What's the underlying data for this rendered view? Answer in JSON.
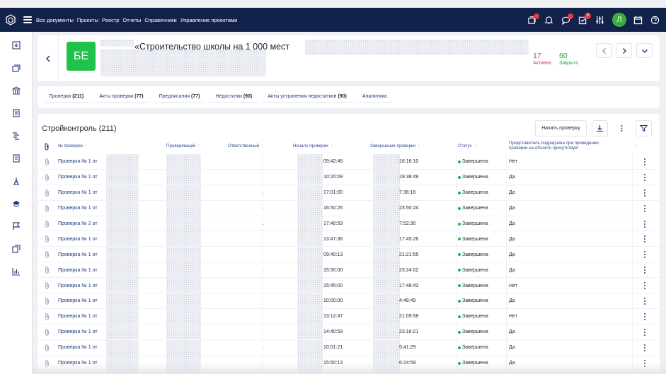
{
  "topnav": {
    "items": [
      "Все документы",
      "Проекты",
      "Реестр",
      "Отчеты",
      "Справочники",
      "Управление проектами"
    ],
    "approvals_badge": "0",
    "avatar_letter": "Л"
  },
  "project": {
    "logo_text": "БЕ",
    "title": "«Строительство школы на 1 000 мест",
    "active_count": "17",
    "active_label": "Активно",
    "closed_count": "60",
    "closed_label": "Закрыто"
  },
  "tabs": [
    {
      "label": "Проверки",
      "count": "(211)"
    },
    {
      "label": "Акты проверки",
      "count": "(77)"
    },
    {
      "label": "Предписания",
      "count": "(77)"
    },
    {
      "label": "Недостатки",
      "count": "(90)"
    },
    {
      "label": "Акты устранения недостатков",
      "count": "(90)"
    },
    {
      "label": "Аналитика",
      "count": ""
    }
  ],
  "main": {
    "title": "Стройконтроль (211)",
    "start_button": "Начать проверку"
  },
  "table": {
    "headers": {
      "number": "№ проверки",
      "inspector": "Проверяющий",
      "responsible": "Ответственный",
      "start": "Начало проверки",
      "end": "Завершение проверки",
      "status": "Статус",
      "rep": "Представитель подрядчика при проведении проверки на объекте присутствует"
    },
    "rows": [
      {
        "number": "Проверка № 1 от",
        "dot": "",
        "start": "09:42:46",
        "end": "16:16:10",
        "status": "Завершена",
        "rep": "Нет"
      },
      {
        "number": "Проверка № 1 от",
        "dot": "",
        "start": "10:20:09",
        "end": "19:38:49",
        "status": "Завершена",
        "rep": "Да"
      },
      {
        "number": "Проверка № 1 от",
        "dot": ".",
        "start": "17:01:00",
        "end": "7:36:16",
        "status": "Завершена",
        "rep": "Да"
      },
      {
        "number": "Проверка № 1 от",
        "dot": ".",
        "start": "16:50:26",
        "end": "23:50:24",
        "status": "Завершена",
        "rep": "Да"
      },
      {
        "number": "Проверка № 2 от",
        "dot": ".",
        "start": "17:40:53",
        "end": "7:52:30",
        "status": "Завершена",
        "rep": "Да"
      },
      {
        "number": "Проверка № 1 от",
        "dot": "",
        "start": "13:47:36",
        "end": "17:45:26",
        "status": "Завершена",
        "rep": "Да"
      },
      {
        "number": "Проверка № 1 от",
        "dot": "",
        "start": "09:40:13",
        "end": "21:21:55",
        "status": "Завершена",
        "rep": "Да"
      },
      {
        "number": "Проверка № 1 от",
        "dot": ".",
        "start": "15:50:00",
        "end": "23:24:02",
        "status": "Завершена",
        "rep": "Да"
      },
      {
        "number": "Проверка № 1 от",
        "dot": "",
        "start": "15:45:00",
        "end": "17:48:43",
        "status": "Завершена",
        "rep": "Нет"
      },
      {
        "number": "Проверка № 1 от",
        "dot": "",
        "start": "10:00:00",
        "end": "4:48:49",
        "status": "Завершена",
        "rep": "Да"
      },
      {
        "number": "Проверка № 1 от",
        "dot": "",
        "start": "13:12:47",
        "end": "21:09:58",
        "status": "Завершена",
        "rep": "Нет"
      },
      {
        "number": "Проверка № 1 от",
        "dot": "",
        "start": "14:40:59",
        "end": "23:16:21",
        "status": "Завершена",
        "rep": "Да"
      },
      {
        "number": "Проверка № 1 от",
        "dot": ".",
        "start": "10:01:21",
        "end": "5:41:29",
        "status": "Завершена",
        "rep": "Да"
      },
      {
        "number": "Проверка № 1 от",
        "dot": "",
        "start": "15:50:13",
        "end": "6:24:59",
        "status": "Завершена",
        "rep": "Да"
      }
    ]
  },
  "icons": {
    "logo": "hexagon-logo-icon",
    "menu": "burger-menu-icon",
    "documents": "documents-stack-icon",
    "bell": "bell-icon",
    "chat": "chat-icon",
    "approvals": "checkbox-icon",
    "settings": "sliders-icon",
    "calendar": "calendar-icon",
    "help": "help-icon",
    "attachment": "paperclip-icon",
    "download": "download-icon",
    "filter": "filter-icon"
  },
  "colors": {
    "header_bg": "#13224a",
    "accent_link": "#1f3a7a",
    "logo_green": "#1fc24a",
    "active_red": "#e5393f",
    "closed_green": "#1ea339"
  }
}
